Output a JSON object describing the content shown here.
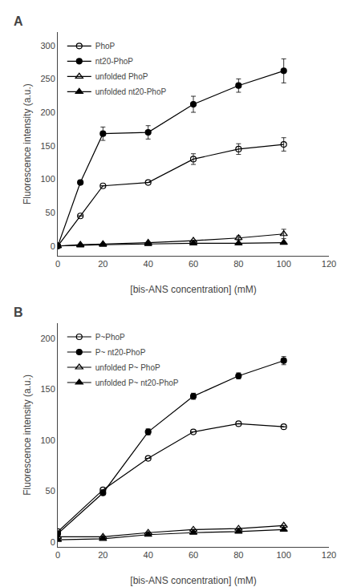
{
  "chart_data": [
    {
      "type": "line",
      "annotations": [
        "A"
      ],
      "xlabel": "[bis-ANS concentration] (mM)",
      "ylabel": "Fluorescence intensity (a.u.)",
      "x": [
        0,
        10,
        20,
        40,
        60,
        80,
        100
      ],
      "series": [
        {
          "name": "PhoP",
          "color": "black",
          "marker": "circle-open",
          "line_style": "solid",
          "values": [
            0,
            45,
            90,
            95,
            130,
            145,
            152
          ],
          "yerr": [
            0,
            0,
            0,
            0,
            8,
            8,
            10
          ]
        },
        {
          "name": "nt20-PhoP",
          "color": "black",
          "marker": "circle",
          "line_style": "solid",
          "values": [
            0,
            95,
            168,
            170,
            212,
            240,
            262
          ],
          "yerr": [
            0,
            0,
            10,
            10,
            12,
            10,
            18
          ]
        },
        {
          "name": "unfolded PhoP",
          "color": "black",
          "marker": "triangle-up-open",
          "line_style": "solid",
          "values": [
            0,
            2,
            3,
            5,
            8,
            12,
            18
          ],
          "yerr": [
            0,
            0,
            0,
            0,
            0,
            3,
            7
          ]
        },
        {
          "name": "unfolded nt20-PhoP",
          "color": "black",
          "marker": "triangle-up",
          "line_style": "solid",
          "values": [
            0,
            1,
            2,
            3,
            4,
            4,
            5
          ],
          "yerr": [
            0,
            0,
            0,
            0,
            0,
            0,
            0
          ]
        }
      ],
      "xlim": [
        0,
        120
      ],
      "xticks": [
        0,
        20,
        40,
        60,
        80,
        100,
        120
      ],
      "ylim": [
        -15,
        320
      ],
      "yticks": [
        0,
        50,
        100,
        150,
        200,
        250,
        300
      ],
      "grid": false,
      "legend": "upper left"
    },
    {
      "type": "line",
      "annotations": [
        "B"
      ],
      "xlabel": "[bis-ANS concentration] (mM)",
      "ylabel": "Fluorescence intensity (a.u.)",
      "x": [
        0,
        20,
        40,
        60,
        80,
        100
      ],
      "series": [
        {
          "name": "P~PhoP",
          "color": "black",
          "marker": "circle-open",
          "line_style": "solid",
          "values": [
            10,
            51,
            82,
            108,
            116,
            113
          ],
          "yerr": [
            0,
            0,
            0,
            0,
            0,
            0
          ]
        },
        {
          "name": "P~ nt20-PhoP",
          "color": "black",
          "marker": "circle",
          "line_style": "solid",
          "values": [
            8,
            48,
            108,
            143,
            163,
            178
          ],
          "yerr": [
            0,
            0,
            3,
            3,
            3,
            4
          ]
        },
        {
          "name": "unfolded P~ PhoP",
          "color": "black",
          "marker": "triangle-up-open",
          "line_style": "solid",
          "values": [
            5,
            5,
            9,
            12,
            13,
            16
          ],
          "yerr": [
            0,
            0,
            0,
            0,
            0,
            0
          ]
        },
        {
          "name": "unfolded P~ nt20-PhoP",
          "color": "black",
          "marker": "triangle-up",
          "line_style": "solid",
          "values": [
            2,
            3,
            7,
            9,
            10,
            12
          ],
          "yerr": [
            0,
            0,
            0,
            0,
            0,
            0
          ]
        }
      ],
      "xlim": [
        0,
        120
      ],
      "xticks": [
        0,
        20,
        40,
        60,
        80,
        100,
        120
      ],
      "ylim": [
        -5,
        215
      ],
      "yticks": [
        0,
        50,
        100,
        150,
        200
      ],
      "grid": false,
      "legend": "upper left"
    }
  ]
}
